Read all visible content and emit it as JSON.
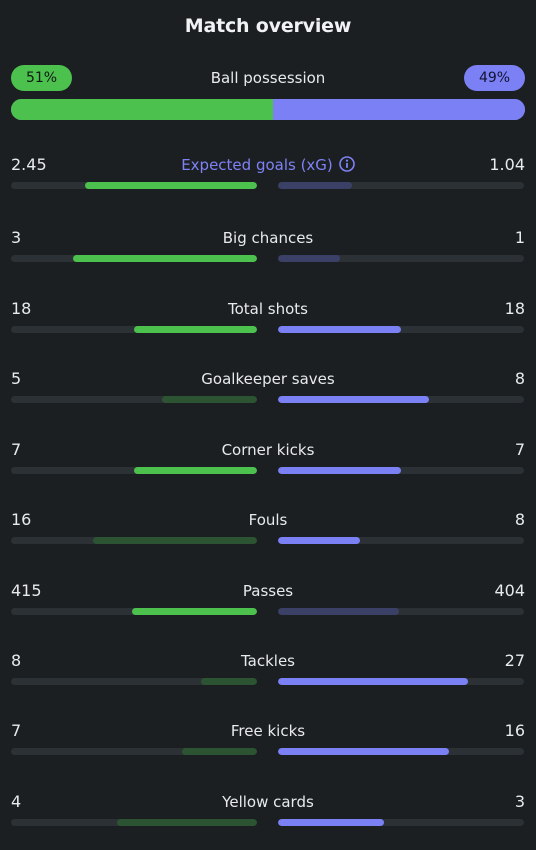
{
  "header": {
    "title": "Match overview"
  },
  "possession": {
    "label": "Ball possession",
    "home_text": "51%",
    "away_text": "49%",
    "home_pct": 51,
    "away_pct": 49
  },
  "colors": {
    "home_strong": "#4cc14e",
    "home_weak": "#2c5432",
    "away_strong": "#7b80f5",
    "away_weak": "#3a4066",
    "track": "#2b3134",
    "background": "#1b1f21",
    "accent_label": "#7e82f6"
  },
  "stats": [
    {
      "key": "xg",
      "label": "Expected goals (xG)",
      "home": "2.45",
      "away": "1.04",
      "home_num": 2.45,
      "away_num": 1.04,
      "accent": true,
      "icon": "info-icon",
      "home_fill": 0.7,
      "away_fill": 0.3,
      "winner": "home"
    },
    {
      "key": "big-chances",
      "label": "Big chances",
      "home": "3",
      "away": "1",
      "home_num": 3,
      "away_num": 1,
      "home_fill": 0.75,
      "away_fill": 0.25,
      "winner": "home"
    },
    {
      "key": "total-shots",
      "label": "Total shots",
      "home": "18",
      "away": "18",
      "home_num": 18,
      "away_num": 18,
      "home_fill": 0.5,
      "away_fill": 0.5,
      "winner": "both"
    },
    {
      "key": "goalkeeper-saves",
      "label": "Goalkeeper saves",
      "home": "5",
      "away": "8",
      "home_num": 5,
      "away_num": 8,
      "home_fill": 0.385,
      "away_fill": 0.615,
      "winner": "away"
    },
    {
      "key": "corner-kicks",
      "label": "Corner kicks",
      "home": "7",
      "away": "7",
      "home_num": 7,
      "away_num": 7,
      "home_fill": 0.5,
      "away_fill": 0.5,
      "winner": "both"
    },
    {
      "key": "fouls",
      "label": "Fouls",
      "home": "16",
      "away": "8",
      "home_num": 16,
      "away_num": 8,
      "home_fill": 0.667,
      "away_fill": 0.333,
      "winner": "away"
    },
    {
      "key": "passes",
      "label": "Passes",
      "home": "415",
      "away": "404",
      "home_num": 415,
      "away_num": 404,
      "home_fill": 0.507,
      "away_fill": 0.493,
      "winner": "home"
    },
    {
      "key": "tackles",
      "label": "Tackles",
      "home": "8",
      "away": "27",
      "home_num": 8,
      "away_num": 27,
      "home_fill": 0.229,
      "away_fill": 0.771,
      "winner": "away"
    },
    {
      "key": "free-kicks",
      "label": "Free kicks",
      "home": "7",
      "away": "16",
      "home_num": 7,
      "away_num": 16,
      "home_fill": 0.304,
      "away_fill": 0.696,
      "winner": "away"
    },
    {
      "key": "yellow-cards",
      "label": "Yellow cards",
      "home": "4",
      "away": "3",
      "home_num": 4,
      "away_num": 3,
      "home_fill": 0.571,
      "away_fill": 0.429,
      "winner": "away"
    }
  ]
}
